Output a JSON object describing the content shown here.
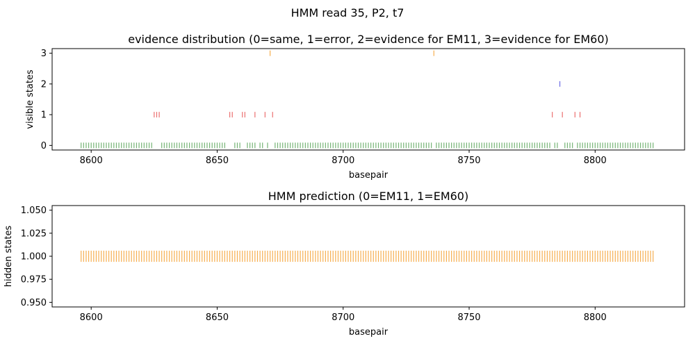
{
  "figure": {
    "suptitle": "HMM read 35, P2, t7"
  },
  "colors": {
    "same": "#5aa65a",
    "error": "#e85555",
    "em11": "#5050e0",
    "em60": "#f5a030",
    "hidden": "#f5a030"
  },
  "chart_data": [
    {
      "type": "scatter",
      "marker": "vertical-line",
      "title": "evidence distribution (0=same, 1=error, 2=evidence for EM11, 3=evidence for EM60)",
      "xlabel": "basepair",
      "ylabel": "visible states",
      "xlim": [
        8584.5,
        8835.5
      ],
      "ylim": [
        -0.15,
        3.15
      ],
      "xticks": [
        8600,
        8650,
        8700,
        8750,
        8800
      ],
      "xtick_labels": [
        "8600",
        "8650",
        "8700",
        "8750",
        "8800"
      ],
      "yticks": [
        0,
        1,
        2,
        3
      ],
      "ytick_labels": [
        "0",
        "1",
        "2",
        "3"
      ],
      "grid": false,
      "series": [
        {
          "y": 0,
          "color": "same",
          "x": [
            8596,
            8597,
            8598,
            8599,
            8600,
            8601,
            8602,
            8603,
            8604,
            8605,
            8606,
            8607,
            8608,
            8609,
            8610,
            8611,
            8612,
            8613,
            8614,
            8615,
            8616,
            8617,
            8618,
            8619,
            8620,
            8621,
            8622,
            8623,
            8624,
            8628,
            8629,
            8630,
            8631,
            8632,
            8633,
            8634,
            8635,
            8636,
            8637,
            8638,
            8639,
            8640,
            8641,
            8642,
            8643,
            8644,
            8645,
            8646,
            8647,
            8648,
            8649,
            8650,
            8651,
            8652,
            8653,
            8657,
            8658,
            8659,
            8662,
            8663,
            8664,
            8665,
            8667,
            8668,
            8670,
            8673,
            8674,
            8675,
            8676,
            8677,
            8678,
            8679,
            8680,
            8681,
            8682,
            8683,
            8684,
            8685,
            8686,
            8687,
            8688,
            8689,
            8690,
            8691,
            8692,
            8693,
            8694,
            8695,
            8696,
            8697,
            8698,
            8699,
            8700,
            8701,
            8702,
            8703,
            8704,
            8705,
            8706,
            8707,
            8708,
            8709,
            8710,
            8711,
            8712,
            8713,
            8714,
            8715,
            8716,
            8717,
            8718,
            8719,
            8720,
            8721,
            8722,
            8723,
            8724,
            8725,
            8726,
            8727,
            8728,
            8729,
            8730,
            8731,
            8732,
            8733,
            8734,
            8735,
            8737,
            8738,
            8739,
            8740,
            8741,
            8742,
            8743,
            8744,
            8745,
            8746,
            8747,
            8748,
            8749,
            8750,
            8751,
            8752,
            8753,
            8754,
            8755,
            8756,
            8757,
            8758,
            8759,
            8760,
            8761,
            8762,
            8763,
            8764,
            8765,
            8766,
            8767,
            8768,
            8769,
            8770,
            8771,
            8772,
            8773,
            8774,
            8775,
            8776,
            8777,
            8778,
            8779,
            8780,
            8781,
            8782,
            8784,
            8785,
            8788,
            8789,
            8790,
            8791,
            8793,
            8794,
            8795,
            8796,
            8797,
            8798,
            8799,
            8800,
            8801,
            8802,
            8803,
            8804,
            8805,
            8806,
            8807,
            8808,
            8809,
            8810,
            8811,
            8812,
            8813,
            8814,
            8815,
            8816,
            8817,
            8818,
            8819,
            8820,
            8821,
            8822,
            8823
          ]
        },
        {
          "y": 1,
          "color": "error",
          "x": [
            8625,
            8626,
            8627,
            8655,
            8656,
            8660,
            8661,
            8665,
            8669,
            8672,
            8783,
            8787,
            8792,
            8794
          ]
        },
        {
          "y": 2,
          "color": "em11",
          "x": [
            8786
          ]
        },
        {
          "y": 3,
          "color": "em60",
          "x": [
            8671,
            8736
          ]
        }
      ]
    },
    {
      "type": "scatter",
      "marker": "vertical-line",
      "title": "HMM prediction (0=EM11, 1=EM60)",
      "xlabel": "basepair",
      "ylabel": "hidden states",
      "xlim": [
        8584.5,
        8835.5
      ],
      "ylim": [
        0.945,
        1.055
      ],
      "xticks": [
        8600,
        8650,
        8700,
        8750,
        8800
      ],
      "xtick_labels": [
        "8600",
        "8650",
        "8700",
        "8750",
        "8800"
      ],
      "yticks": [
        0.95,
        0.975,
        1.0,
        1.025,
        1.05
      ],
      "ytick_labels": [
        "0.950",
        "0.975",
        "1.000",
        "1.025",
        "1.050"
      ],
      "grid": false,
      "series": [
        {
          "y": 1.0,
          "color": "hidden",
          "x_range": [
            8596,
            8823
          ],
          "x_step": 1
        }
      ]
    }
  ]
}
